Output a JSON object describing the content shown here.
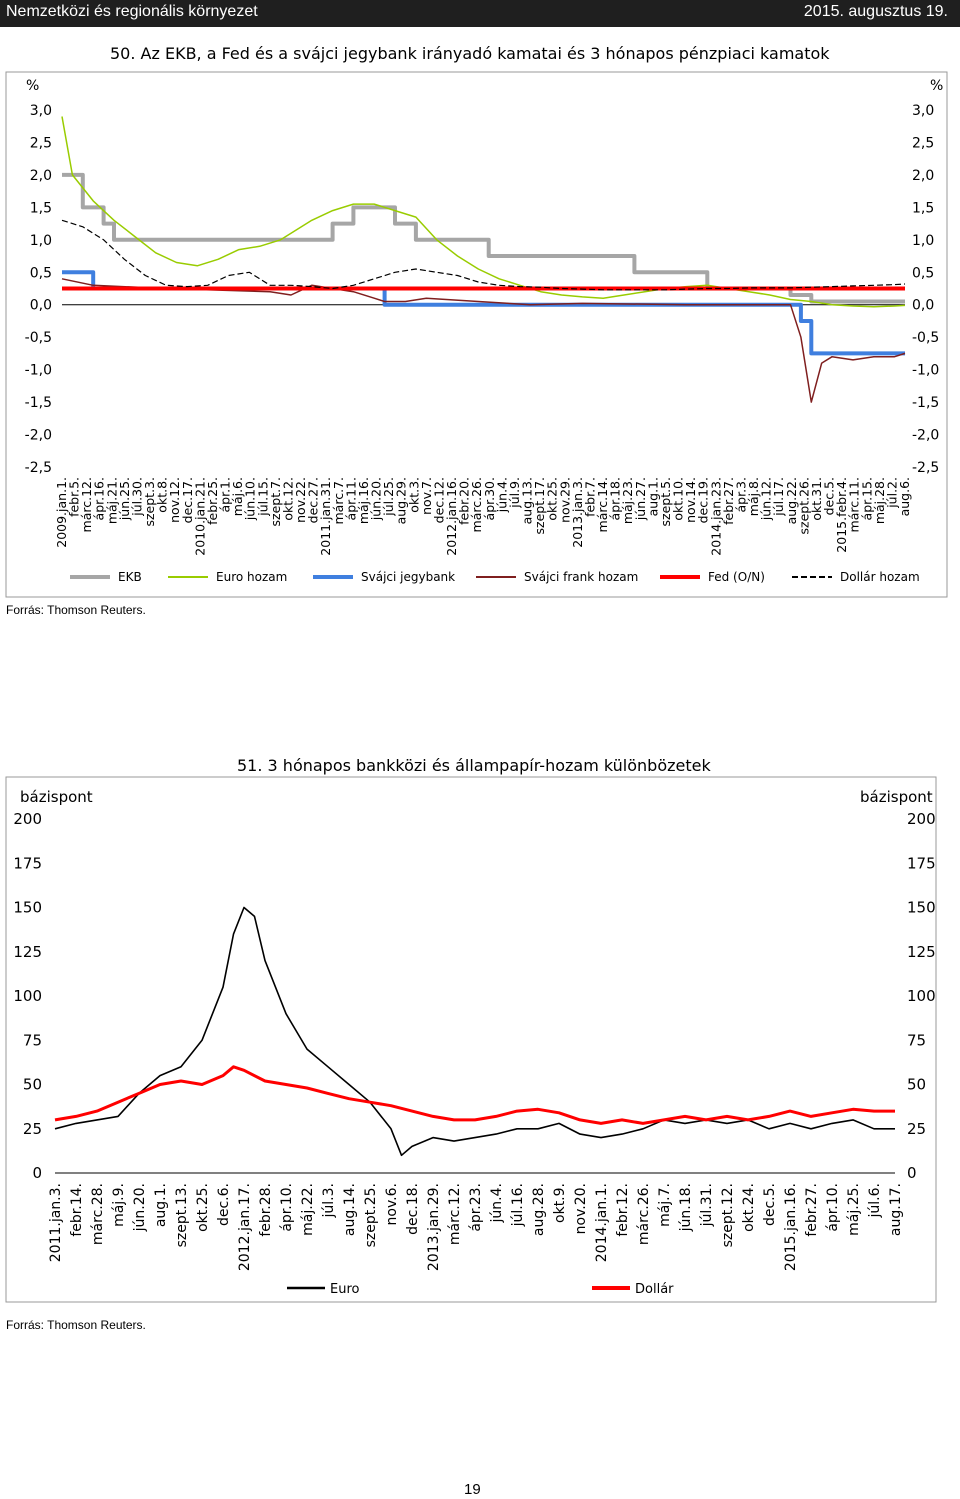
{
  "header": {
    "section": "Nemzetközi és regionális környezet",
    "date": "2015. augusztus 19."
  },
  "page_number": "19",
  "colors": {
    "ekb": "#a6a6a6",
    "euro_hozam": "#99cc00",
    "svajci_jegybank": "#3f7fdf",
    "svajci_frank_hozam": "#7f1f1f",
    "fed": "#ff0000",
    "dollar_hozam": "#000000",
    "euro": "#000000",
    "dollar": "#ff0000"
  },
  "chart_data": [
    {
      "type": "line",
      "title": "50. Az EKB, a Fed és a svájci jegybank irányadó kamatai és 3 hónapos pénzpiaci kamatok",
      "ylabel_left": "%",
      "ylabel_right": "%",
      "ylim": [
        -2.5,
        3.0
      ],
      "y_ticks": [
        "3,0",
        "2,5",
        "2,0",
        "1,5",
        "1,0",
        "0,5",
        "0,0",
        "-0,5",
        "-1,0",
        "-1,5",
        "-2,0",
        "-2,5"
      ],
      "x_ticks": [
        "2009.jan.1.",
        "febr.5.",
        "márc.12.",
        "ápr.16.",
        "máj.21.",
        "jún.25.",
        "júl.30.",
        "szept.3.",
        "okt.8.",
        "nov.12.",
        "dec.17.",
        "2010.jan.21.",
        "febr.25.",
        "ápr.1.",
        "máj.6.",
        "jún.10.",
        "júl.15.",
        "szept.7.",
        "okt.12.",
        "nov.22.",
        "dec.27.",
        "2011.jan.31.",
        "márc.7.",
        "ápr.11.",
        "máj.16.",
        "jún.20.",
        "júl.25.",
        "aug.29.",
        "okt.3.",
        "nov.7.",
        "dec.12.",
        "2012.jan.16.",
        "febr.20.",
        "márc.26.",
        "ápr.30.",
        "jún.4.",
        "júl.9.",
        "aug.13.",
        "szept.17.",
        "okt.25.",
        "nov.29.",
        "2013.jan.3.",
        "febr.7.",
        "márc.14.",
        "ápr.18.",
        "máj.23.",
        "jún.27.",
        "aug.1.",
        "szept.5.",
        "okt.10.",
        "nov.14.",
        "dec.19.",
        "2014.jan.23.",
        "febr.27.",
        "ápr.3.",
        "máj.8.",
        "jún.12.",
        "júl.17.",
        "aug.22.",
        "szept.26.",
        "okt.31.",
        "dec.5.",
        "2015.febr.4.",
        "márc.11.",
        "ápr.15.",
        "máj.28.",
        "júl.2.",
        "aug.6."
      ],
      "legend": [
        "EKB",
        "Euro hozam",
        "Svájci jegybank",
        "Svájci frank hozam",
        "Fed (O/N)",
        "Dollár hozam"
      ],
      "legend_position": "bottom",
      "series": [
        {
          "name": "EKB",
          "points": [
            [
              0,
              2.0
            ],
            [
              2,
              2.0
            ],
            [
              2,
              1.5
            ],
            [
              4,
              1.5
            ],
            [
              4,
              1.25
            ],
            [
              5,
              1.25
            ],
            [
              5,
              1.0
            ],
            [
              26,
              1.0
            ],
            [
              26,
              1.25
            ],
            [
              28,
              1.25
            ],
            [
              28,
              1.5
            ],
            [
              32,
              1.5
            ],
            [
              32,
              1.25
            ],
            [
              34,
              1.25
            ],
            [
              34,
              1.0
            ],
            [
              41,
              1.0
            ],
            [
              41,
              0.75
            ],
            [
              55,
              0.75
            ],
            [
              55,
              0.5
            ],
            [
              62,
              0.5
            ],
            [
              62,
              0.25
            ],
            [
              70,
              0.25
            ],
            [
              70,
              0.15
            ],
            [
              72,
              0.15
            ],
            [
              72,
              0.05
            ],
            [
              81,
              0.05
            ]
          ]
        },
        {
          "name": "Euro hozam",
          "points": [
            [
              0,
              2.9
            ],
            [
              1,
              2.0
            ],
            [
              2,
              1.8
            ],
            [
              3,
              1.6
            ],
            [
              5,
              1.3
            ],
            [
              7,
              1.05
            ],
            [
              9,
              0.8
            ],
            [
              11,
              0.65
            ],
            [
              13,
              0.6
            ],
            [
              15,
              0.7
            ],
            [
              17,
              0.85
            ],
            [
              19,
              0.9
            ],
            [
              21,
              1.0
            ],
            [
              24,
              1.3
            ],
            [
              26,
              1.45
            ],
            [
              28,
              1.55
            ],
            [
              30,
              1.55
            ],
            [
              32,
              1.45
            ],
            [
              34,
              1.35
            ],
            [
              36,
              1.0
            ],
            [
              38,
              0.75
            ],
            [
              40,
              0.55
            ],
            [
              42,
              0.4
            ],
            [
              44,
              0.3
            ],
            [
              46,
              0.2
            ],
            [
              48,
              0.15
            ],
            [
              50,
              0.12
            ],
            [
              52,
              0.1
            ],
            [
              54,
              0.15
            ],
            [
              56,
              0.2
            ],
            [
              58,
              0.25
            ],
            [
              60,
              0.28
            ],
            [
              62,
              0.3
            ],
            [
              64,
              0.25
            ],
            [
              66,
              0.2
            ],
            [
              68,
              0.15
            ],
            [
              70,
              0.08
            ],
            [
              72,
              0.05
            ],
            [
              74,
              0.0
            ],
            [
              76,
              -0.02
            ],
            [
              78,
              -0.03
            ],
            [
              80,
              -0.02
            ],
            [
              81,
              -0.01
            ]
          ]
        },
        {
          "name": "Svájci jegybank",
          "points": [
            [
              0,
              0.5
            ],
            [
              3,
              0.5
            ],
            [
              3,
              0.25
            ],
            [
              31,
              0.25
            ],
            [
              31,
              0.0
            ],
            [
              71,
              0.0
            ],
            [
              71,
              -0.25
            ],
            [
              72,
              -0.25
            ],
            [
              72,
              -0.75
            ],
            [
              81,
              -0.75
            ]
          ]
        },
        {
          "name": "Svájci frank hozam",
          "points": [
            [
              0,
              0.4
            ],
            [
              3,
              0.3
            ],
            [
              10,
              0.25
            ],
            [
              20,
              0.2
            ],
            [
              22,
              0.15
            ],
            [
              24,
              0.3
            ],
            [
              28,
              0.2
            ],
            [
              30,
              0.1
            ],
            [
              31,
              0.05
            ],
            [
              33,
              0.05
            ],
            [
              35,
              0.1
            ],
            [
              40,
              0.05
            ],
            [
              45,
              0.0
            ],
            [
              50,
              0.02
            ],
            [
              60,
              0.0
            ],
            [
              70,
              0.0
            ],
            [
              71,
              -0.5
            ],
            [
              72,
              -1.5
            ],
            [
              73,
              -0.9
            ],
            [
              74,
              -0.8
            ],
            [
              76,
              -0.85
            ],
            [
              78,
              -0.8
            ],
            [
              80,
              -0.8
            ],
            [
              81,
              -0.75
            ]
          ]
        },
        {
          "name": "Fed (O/N)",
          "points": [
            [
              0,
              0.25
            ],
            [
              81,
              0.25
            ]
          ]
        },
        {
          "name": "Dollár hozam",
          "points": [
            [
              0,
              1.3
            ],
            [
              2,
              1.2
            ],
            [
              4,
              1.0
            ],
            [
              6,
              0.7
            ],
            [
              8,
              0.45
            ],
            [
              10,
              0.3
            ],
            [
              12,
              0.28
            ],
            [
              14,
              0.3
            ],
            [
              16,
              0.45
            ],
            [
              18,
              0.5
            ],
            [
              20,
              0.3
            ],
            [
              22,
              0.3
            ],
            [
              24,
              0.28
            ],
            [
              26,
              0.25
            ],
            [
              28,
              0.3
            ],
            [
              30,
              0.4
            ],
            [
              32,
              0.5
            ],
            [
              34,
              0.55
            ],
            [
              36,
              0.5
            ],
            [
              38,
              0.45
            ],
            [
              40,
              0.35
            ],
            [
              42,
              0.3
            ],
            [
              44,
              0.28
            ],
            [
              46,
              0.27
            ],
            [
              48,
              0.25
            ],
            [
              50,
              0.24
            ],
            [
              52,
              0.23
            ],
            [
              54,
              0.23
            ],
            [
              56,
              0.23
            ],
            [
              58,
              0.23
            ],
            [
              60,
              0.24
            ],
            [
              62,
              0.25
            ],
            [
              64,
              0.25
            ],
            [
              66,
              0.26
            ],
            [
              68,
              0.26
            ],
            [
              70,
              0.26
            ],
            [
              72,
              0.27
            ],
            [
              74,
              0.28
            ],
            [
              76,
              0.29
            ],
            [
              78,
              0.3
            ],
            [
              80,
              0.31
            ],
            [
              81,
              0.32
            ]
          ]
        }
      ],
      "source": "Forrás: Thomson Reuters."
    },
    {
      "type": "line",
      "title": "51. 3 hónapos bankközi és állampapír-hozam különbözetek",
      "ylabel_left": "bázispont",
      "ylabel_right": "bázispont",
      "ylim": [
        0,
        200
      ],
      "y_ticks": [
        "200",
        "175",
        "150",
        "125",
        "100",
        "75",
        "50",
        "25",
        "0"
      ],
      "x_ticks": [
        "2011.jan.3.",
        "febr.14.",
        "márc.28.",
        "máj.9.",
        "jún.20.",
        "aug.1.",
        "szept.13.",
        "okt.25.",
        "dec.6.",
        "2012.jan.17.",
        "febr.28.",
        "ápr.10.",
        "máj.22.",
        "júl.3.",
        "aug.14.",
        "szept.25.",
        "nov.6.",
        "dec.18.",
        "2013.jan.29.",
        "márc.12.",
        "ápr.23.",
        "jún.4.",
        "júl.16.",
        "aug.28.",
        "okt.9.",
        "nov.20.",
        "2014.jan.1.",
        "febr.12.",
        "márc.26.",
        "máj.7.",
        "jún.18.",
        "júl.31.",
        "szept.12.",
        "okt.24.",
        "dec.5.",
        "2015.jan.16.",
        "febr.27.",
        "ápr.10.",
        "máj.25.",
        "júl.6.",
        "aug.17."
      ],
      "legend": [
        "Euro",
        "Dollár"
      ],
      "legend_position": "bottom",
      "series": [
        {
          "name": "Euro",
          "points": [
            [
              0,
              25
            ],
            [
              1,
              28
            ],
            [
              2,
              30
            ],
            [
              3,
              32
            ],
            [
              4,
              45
            ],
            [
              5,
              55
            ],
            [
              6,
              60
            ],
            [
              7,
              75
            ],
            [
              8,
              105
            ],
            [
              8.5,
              135
            ],
            [
              9,
              150
            ],
            [
              9.5,
              145
            ],
            [
              10,
              120
            ],
            [
              11,
              90
            ],
            [
              12,
              70
            ],
            [
              13,
              60
            ],
            [
              14,
              50
            ],
            [
              15,
              40
            ],
            [
              16,
              25
            ],
            [
              16.5,
              10
            ],
            [
              17,
              15
            ],
            [
              18,
              20
            ],
            [
              19,
              18
            ],
            [
              20,
              20
            ],
            [
              21,
              22
            ],
            [
              22,
              25
            ],
            [
              23,
              25
            ],
            [
              24,
              28
            ],
            [
              25,
              22
            ],
            [
              26,
              20
            ],
            [
              27,
              22
            ],
            [
              28,
              25
            ],
            [
              29,
              30
            ],
            [
              30,
              28
            ],
            [
              31,
              30
            ],
            [
              32,
              28
            ],
            [
              33,
              30
            ],
            [
              34,
              25
            ],
            [
              35,
              28
            ],
            [
              36,
              25
            ],
            [
              37,
              28
            ],
            [
              38,
              30
            ],
            [
              39,
              25
            ],
            [
              40,
              25
            ]
          ]
        },
        {
          "name": "Dollár",
          "points": [
            [
              0,
              30
            ],
            [
              1,
              32
            ],
            [
              2,
              35
            ],
            [
              3,
              40
            ],
            [
              4,
              45
            ],
            [
              5,
              50
            ],
            [
              6,
              52
            ],
            [
              7,
              50
            ],
            [
              8,
              55
            ],
            [
              8.5,
              60
            ],
            [
              9,
              58
            ],
            [
              10,
              52
            ],
            [
              11,
              50
            ],
            [
              12,
              48
            ],
            [
              13,
              45
            ],
            [
              14,
              42
            ],
            [
              15,
              40
            ],
            [
              16,
              38
            ],
            [
              17,
              35
            ],
            [
              18,
              32
            ],
            [
              19,
              30
            ],
            [
              20,
              30
            ],
            [
              21,
              32
            ],
            [
              22,
              35
            ],
            [
              23,
              36
            ],
            [
              24,
              34
            ],
            [
              25,
              30
            ],
            [
              26,
              28
            ],
            [
              27,
              30
            ],
            [
              28,
              28
            ],
            [
              29,
              30
            ],
            [
              30,
              32
            ],
            [
              31,
              30
            ],
            [
              32,
              32
            ],
            [
              33,
              30
            ],
            [
              34,
              32
            ],
            [
              35,
              35
            ],
            [
              36,
              32
            ],
            [
              37,
              34
            ],
            [
              38,
              36
            ],
            [
              39,
              35
            ],
            [
              40,
              35
            ]
          ]
        }
      ],
      "source": "Forrás: Thomson Reuters."
    }
  ]
}
